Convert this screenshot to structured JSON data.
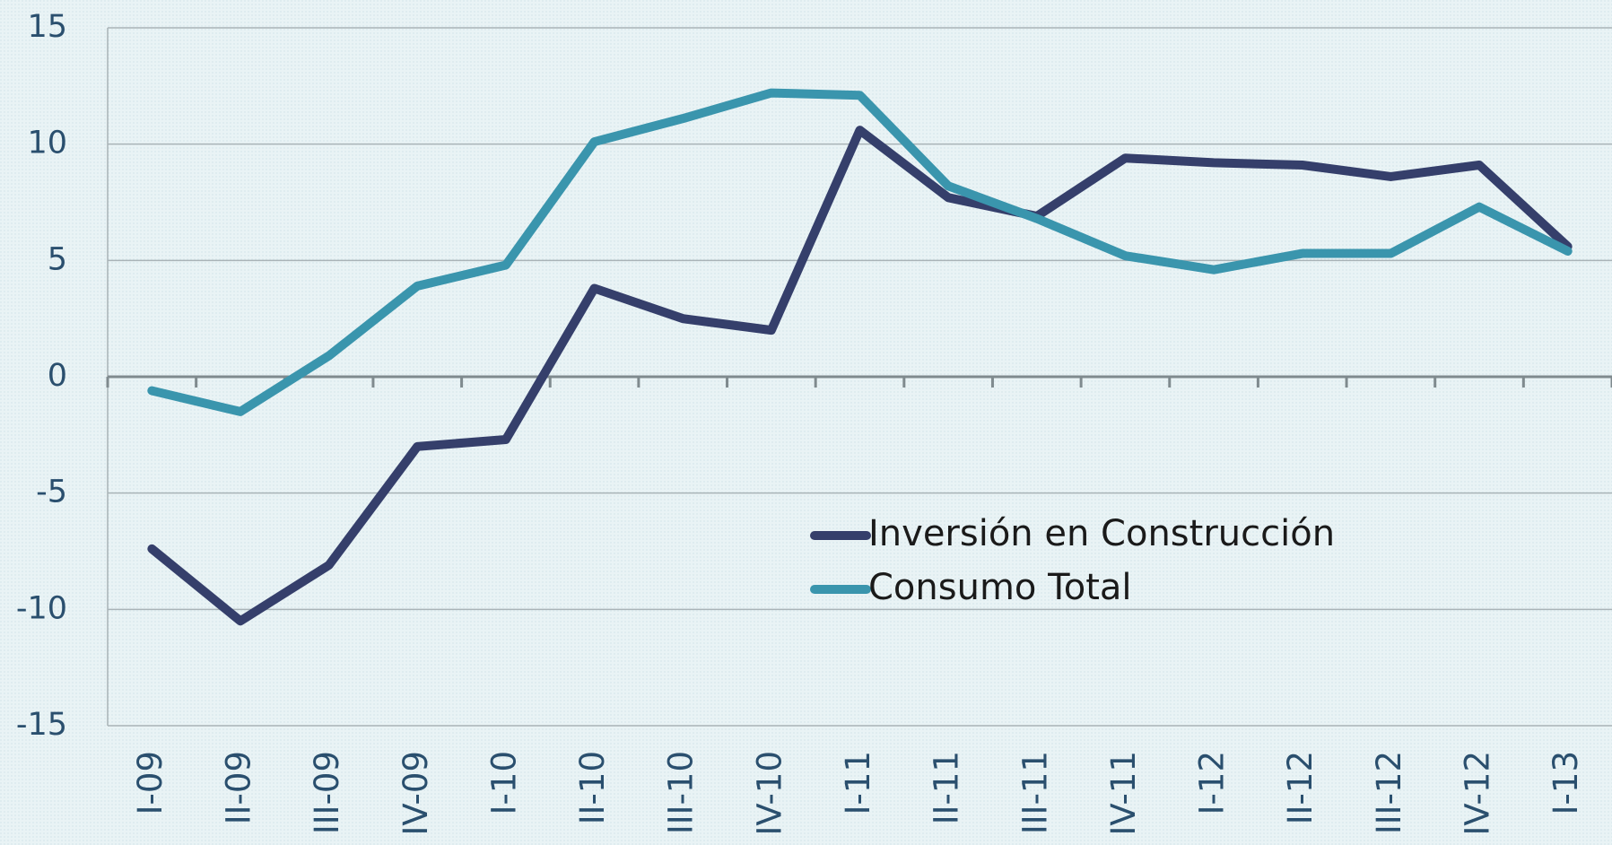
{
  "chart_data": {
    "type": "line",
    "categories": [
      "I-09",
      "II-09",
      "III-09",
      "IV-09",
      "I-10",
      "II-10",
      "III-10",
      "IV-10",
      "I-11",
      "II-11",
      "III-11",
      "IV-11",
      "I-12",
      "II-12",
      "III-12",
      "IV-12",
      "I-13"
    ],
    "series": [
      {
        "name": "Inversión en Construcción",
        "color": "#353f6b",
        "values": [
          -7.4,
          -10.5,
          -8.1,
          -3.0,
          -2.7,
          3.8,
          2.5,
          2.0,
          10.6,
          7.7,
          6.9,
          9.4,
          9.2,
          9.1,
          8.6,
          9.1,
          5.6
        ]
      },
      {
        "name": "Consumo Total",
        "color": "#3a95ad",
        "values": [
          -0.6,
          -1.5,
          0.9,
          3.9,
          4.8,
          10.1,
          11.1,
          12.2,
          12.1,
          8.2,
          6.8,
          5.2,
          4.6,
          5.3,
          5.3,
          7.3,
          5.4
        ]
      }
    ],
    "ylim": [
      -15,
      15
    ],
    "yticks": [
      -15,
      -10,
      -5,
      0,
      5,
      10,
      15
    ],
    "grid": true
  }
}
